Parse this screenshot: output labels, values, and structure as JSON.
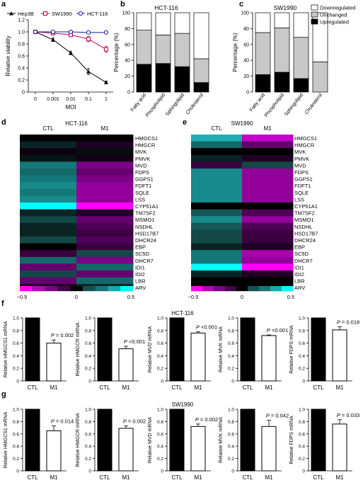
{
  "panel_letters": [
    "a",
    "b",
    "c",
    "d",
    "e",
    "f",
    "g"
  ],
  "chart_data": [
    {
      "panel": "a",
      "type": "line",
      "categories": [
        "0",
        "0.001",
        "0.01",
        "0.1",
        "1"
      ],
      "xlabel": "MOI",
      "ylabel": "Relative viability",
      "ylim": [
        0,
        1.2
      ],
      "yticks": [
        "0",
        "0.2",
        "0.4",
        "0.6",
        "0.8",
        "1.0",
        "1.2"
      ],
      "legend_position": "top",
      "series": [
        {
          "name": "Hep3B",
          "color": "#000000",
          "marker": "triangle",
          "values": [
            1.0,
            0.87,
            0.65,
            0.34,
            0.16
          ],
          "errors": [
            0.01,
            0.03,
            0.03,
            0.05,
            0.02
          ]
        },
        {
          "name": "SW1990",
          "color": "#c0004a",
          "marker": "square",
          "values": [
            1.0,
            0.98,
            0.95,
            0.88,
            0.71
          ],
          "errors": [
            0.01,
            0.03,
            0.03,
            0.04,
            0.05
          ]
        },
        {
          "name": "HCT-116",
          "color": "#1a1aa8",
          "marker": "circle",
          "values": [
            1.0,
            1.0,
            1.0,
            0.99,
            0.99
          ],
          "errors": [
            0.01,
            0.02,
            0.02,
            0.02,
            0.02
          ]
        }
      ]
    },
    {
      "panel": "b",
      "type": "bar",
      "stacked": true,
      "title": "HCT-116",
      "ylabel": "Percentage (%)",
      "ylim": [
        0,
        100
      ],
      "yticks": [
        "0",
        "20",
        "40",
        "60",
        "80",
        "100"
      ],
      "categories": [
        "Fatty acid",
        "Phospholipid",
        "Sphingolipid",
        "Cholesterol"
      ],
      "series": [
        {
          "name": "Upregulated",
          "color": "#000000",
          "values": [
            35,
            36,
            32,
            12
          ]
        },
        {
          "name": "Unchanged",
          "color": "#c8c8c8",
          "values": [
            43,
            36,
            42,
            30
          ]
        },
        {
          "name": "Downregulated",
          "color": "#ffffff",
          "values": [
            22,
            28,
            26,
            58
          ]
        }
      ]
    },
    {
      "panel": "c",
      "type": "bar",
      "stacked": true,
      "title": "SW1990",
      "ylabel": "Percentage (%)",
      "ylim": [
        0,
        100
      ],
      "yticks": [
        "0",
        "20",
        "40",
        "60",
        "80",
        "100"
      ],
      "categories": [
        "Fatty acid",
        "Phospholipid",
        "Sphingolipid",
        "Cholesterol"
      ],
      "legend_position": "right",
      "legend": [
        "Downregulated",
        "Unchanged",
        "Upregulated"
      ],
      "series": [
        {
          "name": "Upregulated",
          "color": "#000000",
          "values": [
            22,
            25,
            17,
            0
          ]
        },
        {
          "name": "Unchanged",
          "color": "#c8c8c8",
          "values": [
            53,
            56,
            52,
            38
          ]
        },
        {
          "name": "Downregulated",
          "color": "#ffffff",
          "values": [
            25,
            19,
            31,
            62
          ]
        }
      ]
    },
    {
      "panel": "d",
      "type": "heatmap",
      "title": "HCT-116",
      "columns": [
        "CTL",
        "M1"
      ],
      "rows": [
        "HMGCS1",
        "HMGCR",
        "MVK",
        "PMVK",
        "MVD",
        "FDPS",
        "GGPS1",
        "FDFT1",
        "SQLE",
        "LSS",
        "CYP51A1",
        "TM7SF2",
        "MSMO1",
        "NSDHL",
        "HSD17B7",
        "DHCR24",
        "EBP",
        "SC5D",
        "DHCR7",
        "IDI1",
        "IDI2",
        "LBR",
        "ARV"
      ],
      "values": [
        [
          0.0,
          0.0
        ],
        [
          0.05,
          -0.05
        ],
        [
          -0.02,
          0.02
        ],
        [
          0.03,
          -0.03
        ],
        [
          0.25,
          -0.25
        ],
        [
          0.2,
          -0.2
        ],
        [
          0.25,
          -0.25
        ],
        [
          0.3,
          -0.3
        ],
        [
          0.25,
          -0.3
        ],
        [
          0.3,
          -0.3
        ],
        [
          0.5,
          -0.5
        ],
        [
          0.05,
          -0.05
        ],
        [
          0.1,
          -0.2
        ],
        [
          0.05,
          -0.15
        ],
        [
          0.05,
          -0.1
        ],
        [
          0.1,
          -0.15
        ],
        [
          0.0,
          -0.1
        ],
        [
          -0.1,
          0.1
        ],
        [
          0.2,
          -0.25
        ],
        [
          -0.2,
          0.2
        ],
        [
          0.1,
          -0.2
        ],
        [
          -0.2,
          0.2
        ],
        [
          -0.05,
          0.05
        ]
      ],
      "colorbar": {
        "min": -0.5,
        "max": 0.5,
        "ticks": [
          "−0.5",
          "0",
          "0.5"
        ]
      }
    },
    {
      "panel": "e",
      "type": "heatmap",
      "title": "SW1990",
      "columns": [
        "CTL",
        "M1"
      ],
      "rows": [
        "HMGCS1",
        "HMGCR",
        "MVK",
        "PMVK",
        "MVD",
        "FDPS",
        "GGPS1",
        "FDFT1",
        "SQLE",
        "LSS",
        "CYP51A1",
        "TM7SF2",
        "MSMO1",
        "NSDHL",
        "HSD17B7",
        "DHCR24",
        "EBP",
        "SC5D",
        "DHCR7",
        "IDI1",
        "IDI2",
        "LBR",
        "ARV"
      ],
      "values": [
        [
          0.4,
          -0.4
        ],
        [
          0.2,
          -0.2
        ],
        [
          0.0,
          0.0
        ],
        [
          0.05,
          -0.05
        ],
        [
          -0.1,
          0.1
        ],
        [
          0.3,
          -0.3
        ],
        [
          0.3,
          -0.3
        ],
        [
          0.3,
          -0.3
        ],
        [
          0.3,
          -0.3
        ],
        [
          0.3,
          -0.3
        ],
        [
          0.0,
          0.0
        ],
        [
          0.15,
          -0.15
        ],
        [
          0.3,
          -0.3
        ],
        [
          0.15,
          -0.15
        ],
        [
          0.1,
          -0.1
        ],
        [
          0.1,
          -0.1
        ],
        [
          0.05,
          -0.05
        ],
        [
          0.25,
          -0.35
        ],
        [
          0.25,
          -0.3
        ],
        [
          0.5,
          -0.5
        ],
        [
          0.05,
          -0.05
        ],
        [
          0.0,
          0.0
        ],
        [
          0.0,
          0.0
        ]
      ],
      "colorbar": {
        "min": -0.5,
        "max": 0.5,
        "ticks": [
          "−0.5",
          "0",
          "0.5"
        ]
      }
    },
    {
      "panel": "f",
      "type": "bar",
      "title": "HCT-116",
      "ylim": [
        0,
        1.0
      ],
      "yticks": [
        "0",
        "0.2",
        "0.4",
        "0.6",
        "0.8",
        "1.0"
      ],
      "categories": [
        "CTL",
        "M1"
      ],
      "subplots": [
        {
          "ylabel": "Relative HMGCS1 mRNA",
          "values": [
            1.0,
            0.6
          ],
          "error": 0.05,
          "pvalue": "0.002"
        },
        {
          "ylabel": "Relative HMGCR mRNA",
          "values": [
            1.0,
            0.51
          ],
          "error": 0.04,
          "pvalue": "<0.001"
        },
        {
          "ylabel": "Relative MVD mRNA",
          "values": [
            1.0,
            0.76
          ],
          "error": 0.02,
          "pvalue": "<0.001"
        },
        {
          "ylabel": "Relative MVK mRNA",
          "values": [
            1.0,
            0.72
          ],
          "error": 0.01,
          "pvalue": "<0.001"
        },
        {
          "ylabel": "Relative FDPS mRNA",
          "values": [
            1.0,
            0.81
          ],
          "error": 0.05,
          "pvalue": "0.018"
        }
      ]
    },
    {
      "panel": "g",
      "type": "bar",
      "title": "SW1990",
      "ylim": [
        0,
        1.0
      ],
      "yticks": [
        "0",
        "0.2",
        "0.4",
        "0.6",
        "0.8",
        "1.0"
      ],
      "categories": [
        "CTL",
        "M1"
      ],
      "subplots": [
        {
          "ylabel": "Relative HMGCS1 mRNA",
          "values": [
            1.0,
            0.65
          ],
          "error": 0.08,
          "pvalue": "0.014"
        },
        {
          "ylabel": "Relative HMGCR mRNA",
          "values": [
            1.0,
            0.69
          ],
          "error": 0.04,
          "pvalue": "0.002"
        },
        {
          "ylabel": "Relative MVD mRNA",
          "values": [
            1.0,
            0.72
          ],
          "error": 0.04,
          "pvalue": "0.002"
        },
        {
          "ylabel": "Relative MVK mRNA",
          "values": [
            1.0,
            0.72
          ],
          "error": 0.1,
          "pvalue": "0.042"
        },
        {
          "ylabel": "Relative FDPS mRNA",
          "values": [
            1.0,
            0.76
          ],
          "error": 0.07,
          "pvalue": "0.033"
        }
      ]
    }
  ]
}
